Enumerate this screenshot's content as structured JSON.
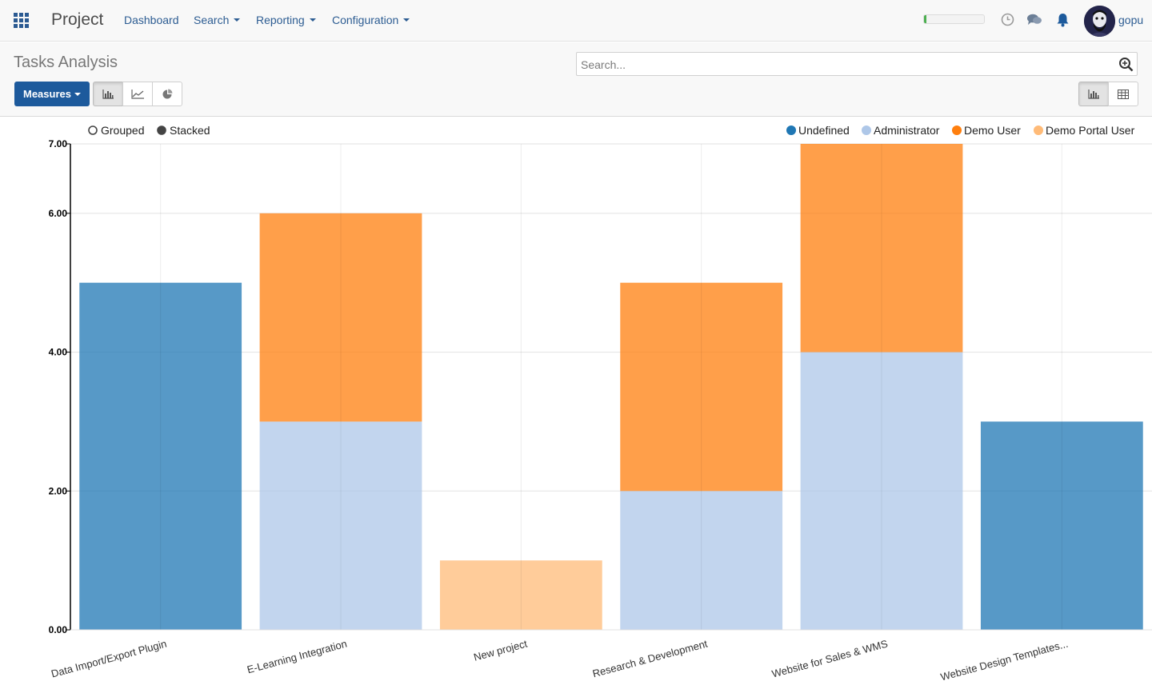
{
  "navbar": {
    "app_name": "Project",
    "menu": [
      "Dashboard",
      "Search",
      "Reporting",
      "Configuration"
    ],
    "progress_fraction": 0.04,
    "username": "gopu"
  },
  "control_panel": {
    "title": "Tasks Analysis",
    "search_placeholder": "Search...",
    "measures_label": "Measures"
  },
  "chart_data": {
    "type": "bar",
    "stacked": true,
    "categories": [
      "Data Import/Export Plugin",
      "E-Learning Integration",
      "New project",
      "Research & Development",
      "Website for Sales & WMS",
      "Website Design Templates..."
    ],
    "series": [
      {
        "name": "Undefined",
        "color": "#1f77b4",
        "values": [
          5,
          0,
          0,
          0,
          0,
          3
        ]
      },
      {
        "name": "Administrator",
        "color": "#aec7e8",
        "values": [
          0,
          3,
          0,
          2,
          4,
          0
        ]
      },
      {
        "name": "Demo User",
        "color": "#ff7f0e",
        "values": [
          0,
          3,
          0,
          3,
          3,
          0
        ]
      },
      {
        "name": "Demo Portal User",
        "color": "#ffbb78",
        "values": [
          0,
          0,
          1,
          0,
          0,
          0
        ]
      }
    ],
    "mode_options": [
      "Grouped",
      "Stacked"
    ],
    "selected_mode": "Stacked",
    "ylim": [
      0,
      7
    ],
    "yticks": [
      "0.00",
      "2.00",
      "4.00",
      "6.00",
      "7.00"
    ],
    "ytick_values": [
      0,
      2,
      4,
      6,
      7
    ],
    "grid": true,
    "legend_position": "top-right"
  }
}
